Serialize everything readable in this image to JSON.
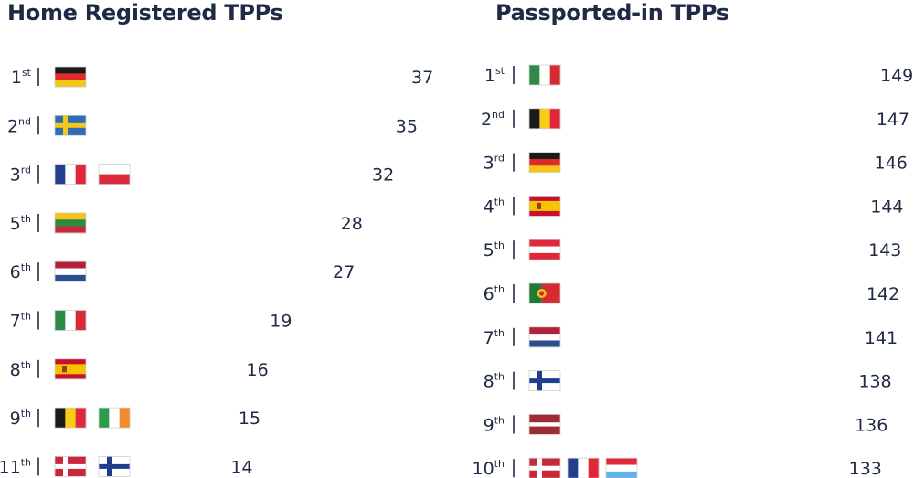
{
  "chart_data": [
    {
      "type": "bar",
      "title": "Home Registered TPPs",
      "rows": [
        {
          "rank": "1",
          "suffix": "st",
          "flags": [
            "germany"
          ],
          "value": 37
        },
        {
          "rank": "2",
          "suffix": "nd",
          "flags": [
            "sweden"
          ],
          "value": 35
        },
        {
          "rank": "3",
          "suffix": "rd",
          "flags": [
            "france",
            "poland"
          ],
          "value": 32
        },
        {
          "rank": "5",
          "suffix": "th",
          "flags": [
            "lithuania"
          ],
          "value": 28
        },
        {
          "rank": "6",
          "suffix": "th",
          "flags": [
            "netherlands"
          ],
          "value": 27
        },
        {
          "rank": "7",
          "suffix": "th",
          "flags": [
            "italy"
          ],
          "value": 19
        },
        {
          "rank": "8",
          "suffix": "th",
          "flags": [
            "spain"
          ],
          "value": 16
        },
        {
          "rank": "9",
          "suffix": "th",
          "flags": [
            "belgium",
            "ireland"
          ],
          "value": 15
        },
        {
          "rank": "11",
          "suffix": "th",
          "flags": [
            "denmark",
            "finland"
          ],
          "value": 14
        }
      ]
    },
    {
      "type": "bar",
      "title": "Passported-in TPPs",
      "rows": [
        {
          "rank": "1",
          "suffix": "st",
          "flags": [
            "italy"
          ],
          "value": 149
        },
        {
          "rank": "2",
          "suffix": "nd",
          "flags": [
            "belgium"
          ],
          "value": 147
        },
        {
          "rank": "3",
          "suffix": "rd",
          "flags": [
            "germany"
          ],
          "value": 146
        },
        {
          "rank": "4",
          "suffix": "th",
          "flags": [
            "spain"
          ],
          "value": 144
        },
        {
          "rank": "5",
          "suffix": "th",
          "flags": [
            "austria"
          ],
          "value": 143
        },
        {
          "rank": "6",
          "suffix": "th",
          "flags": [
            "portugal"
          ],
          "value": 142
        },
        {
          "rank": "7",
          "suffix": "th",
          "flags": [
            "netherlands"
          ],
          "value": 141
        },
        {
          "rank": "8",
          "suffix": "th",
          "flags": [
            "finland"
          ],
          "value": 138
        },
        {
          "rank": "9",
          "suffix": "th",
          "flags": [
            "latvia"
          ],
          "value": 136
        },
        {
          "rank": "10",
          "suffix": "th",
          "flags": [
            "denmark",
            "france",
            "luxembourg"
          ],
          "value": 133
        }
      ]
    }
  ],
  "colors": {
    "bar_start": "#f08a24",
    "bar_end": "#e03a3e",
    "text": "#1f2a44"
  }
}
